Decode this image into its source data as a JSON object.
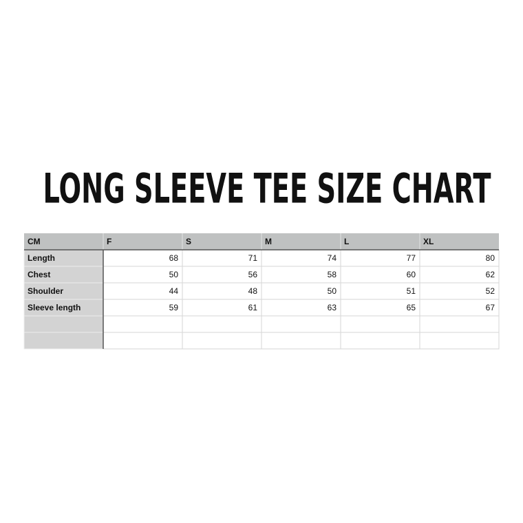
{
  "title": "LONG SLEEVE TEE SIZE CHART",
  "table": {
    "columns": [
      "CM",
      "F",
      "S",
      "M",
      "L",
      "XL"
    ],
    "rows": [
      [
        "Length",
        68,
        71,
        74,
        77,
        80
      ],
      [
        "Chest",
        50,
        56,
        58,
        60,
        62
      ],
      [
        "Shoulder",
        44,
        48,
        50,
        51,
        52
      ],
      [
        "Sleeve length",
        59,
        61,
        63,
        65,
        67
      ]
    ]
  }
}
